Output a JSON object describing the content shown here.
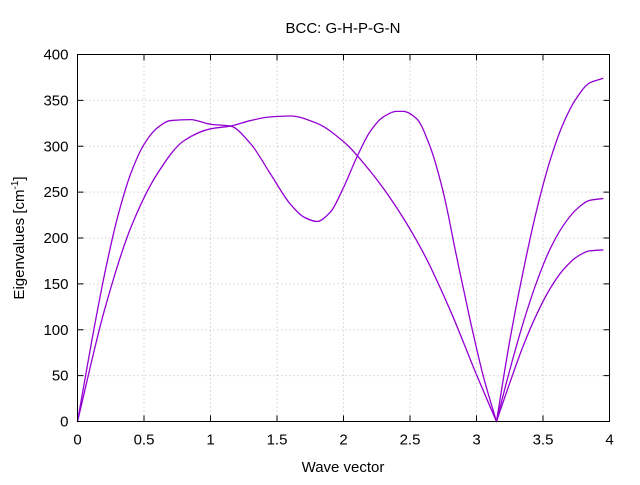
{
  "chart_data": {
    "type": "line",
    "title": "BCC: G-H-P-G-N",
    "xlabel": "Wave vector",
    "ylabel": {
      "prefix": "Eigenvalues [cm",
      "superscript": "-1",
      "suffix": "]"
    },
    "xlim": [
      0,
      4
    ],
    "ylim": [
      0,
      400
    ],
    "xticks": [
      0,
      0.5,
      1,
      1.5,
      2,
      2.5,
      3,
      3.5,
      4
    ],
    "xtick_labels": [
      "0",
      "0.5",
      "1",
      "1.5",
      "2",
      "2.5",
      "3",
      "3.5",
      "4"
    ],
    "yticks": [
      0,
      50,
      100,
      150,
      200,
      250,
      300,
      350,
      400
    ],
    "ytick_labels": [
      "0",
      "50",
      "100",
      "150",
      "200",
      "250",
      "300",
      "350",
      "400"
    ],
    "grid": true,
    "line_color": "#9400d3",
    "series": [
      {
        "x": [
          0,
          0.2,
          0.4,
          0.6,
          0.8,
          1.0,
          1.15,
          1.3,
          1.45,
          1.6,
          1.8,
          2.0,
          2.2,
          2.4,
          2.6,
          2.8,
          3.0,
          3.15
        ],
        "y": [
          0,
          120,
          211,
          270,
          306,
          319,
          322,
          328,
          332,
          333,
          325,
          305,
          273,
          233,
          184,
          122,
          51,
          0
        ]
      },
      {
        "x": [
          0,
          0.1,
          0.2,
          0.3,
          0.4,
          0.5,
          0.6,
          0.7,
          0.85,
          1.0,
          1.15,
          1.3,
          1.45,
          1.6,
          1.7,
          1.8,
          1.9,
          2.0,
          2.1,
          2.2,
          2.3,
          2.4,
          2.45,
          2.55,
          2.65,
          2.75,
          2.85,
          2.95,
          3.05,
          3.15
        ],
        "y": [
          0,
          82,
          158,
          222,
          270,
          302,
          320,
          328,
          329,
          324,
          322,
          303,
          270,
          237,
          223,
          218,
          228,
          255,
          288,
          316,
          332,
          338,
          338,
          330,
          300,
          250,
          180,
          112,
          50,
          0
        ]
      },
      {
        "x": [
          3.15,
          3.25,
          3.35,
          3.45,
          3.55,
          3.65,
          3.75,
          3.85,
          3.95
        ],
        "y": [
          0,
          88,
          163,
          229,
          283,
          324,
          352,
          369,
          374
        ]
      },
      {
        "x": [
          3.15,
          3.25,
          3.35,
          3.45,
          3.55,
          3.65,
          3.75,
          3.85,
          3.95
        ],
        "y": [
          0,
          56,
          107,
          151,
          187,
          213,
          231,
          241,
          243
        ]
      },
      {
        "x": [
          3.15,
          3.25,
          3.35,
          3.45,
          3.55,
          3.65,
          3.75,
          3.85,
          3.95
        ],
        "y": [
          0,
          42,
          82,
          116,
          144,
          165,
          179,
          186,
          187
        ]
      }
    ]
  }
}
